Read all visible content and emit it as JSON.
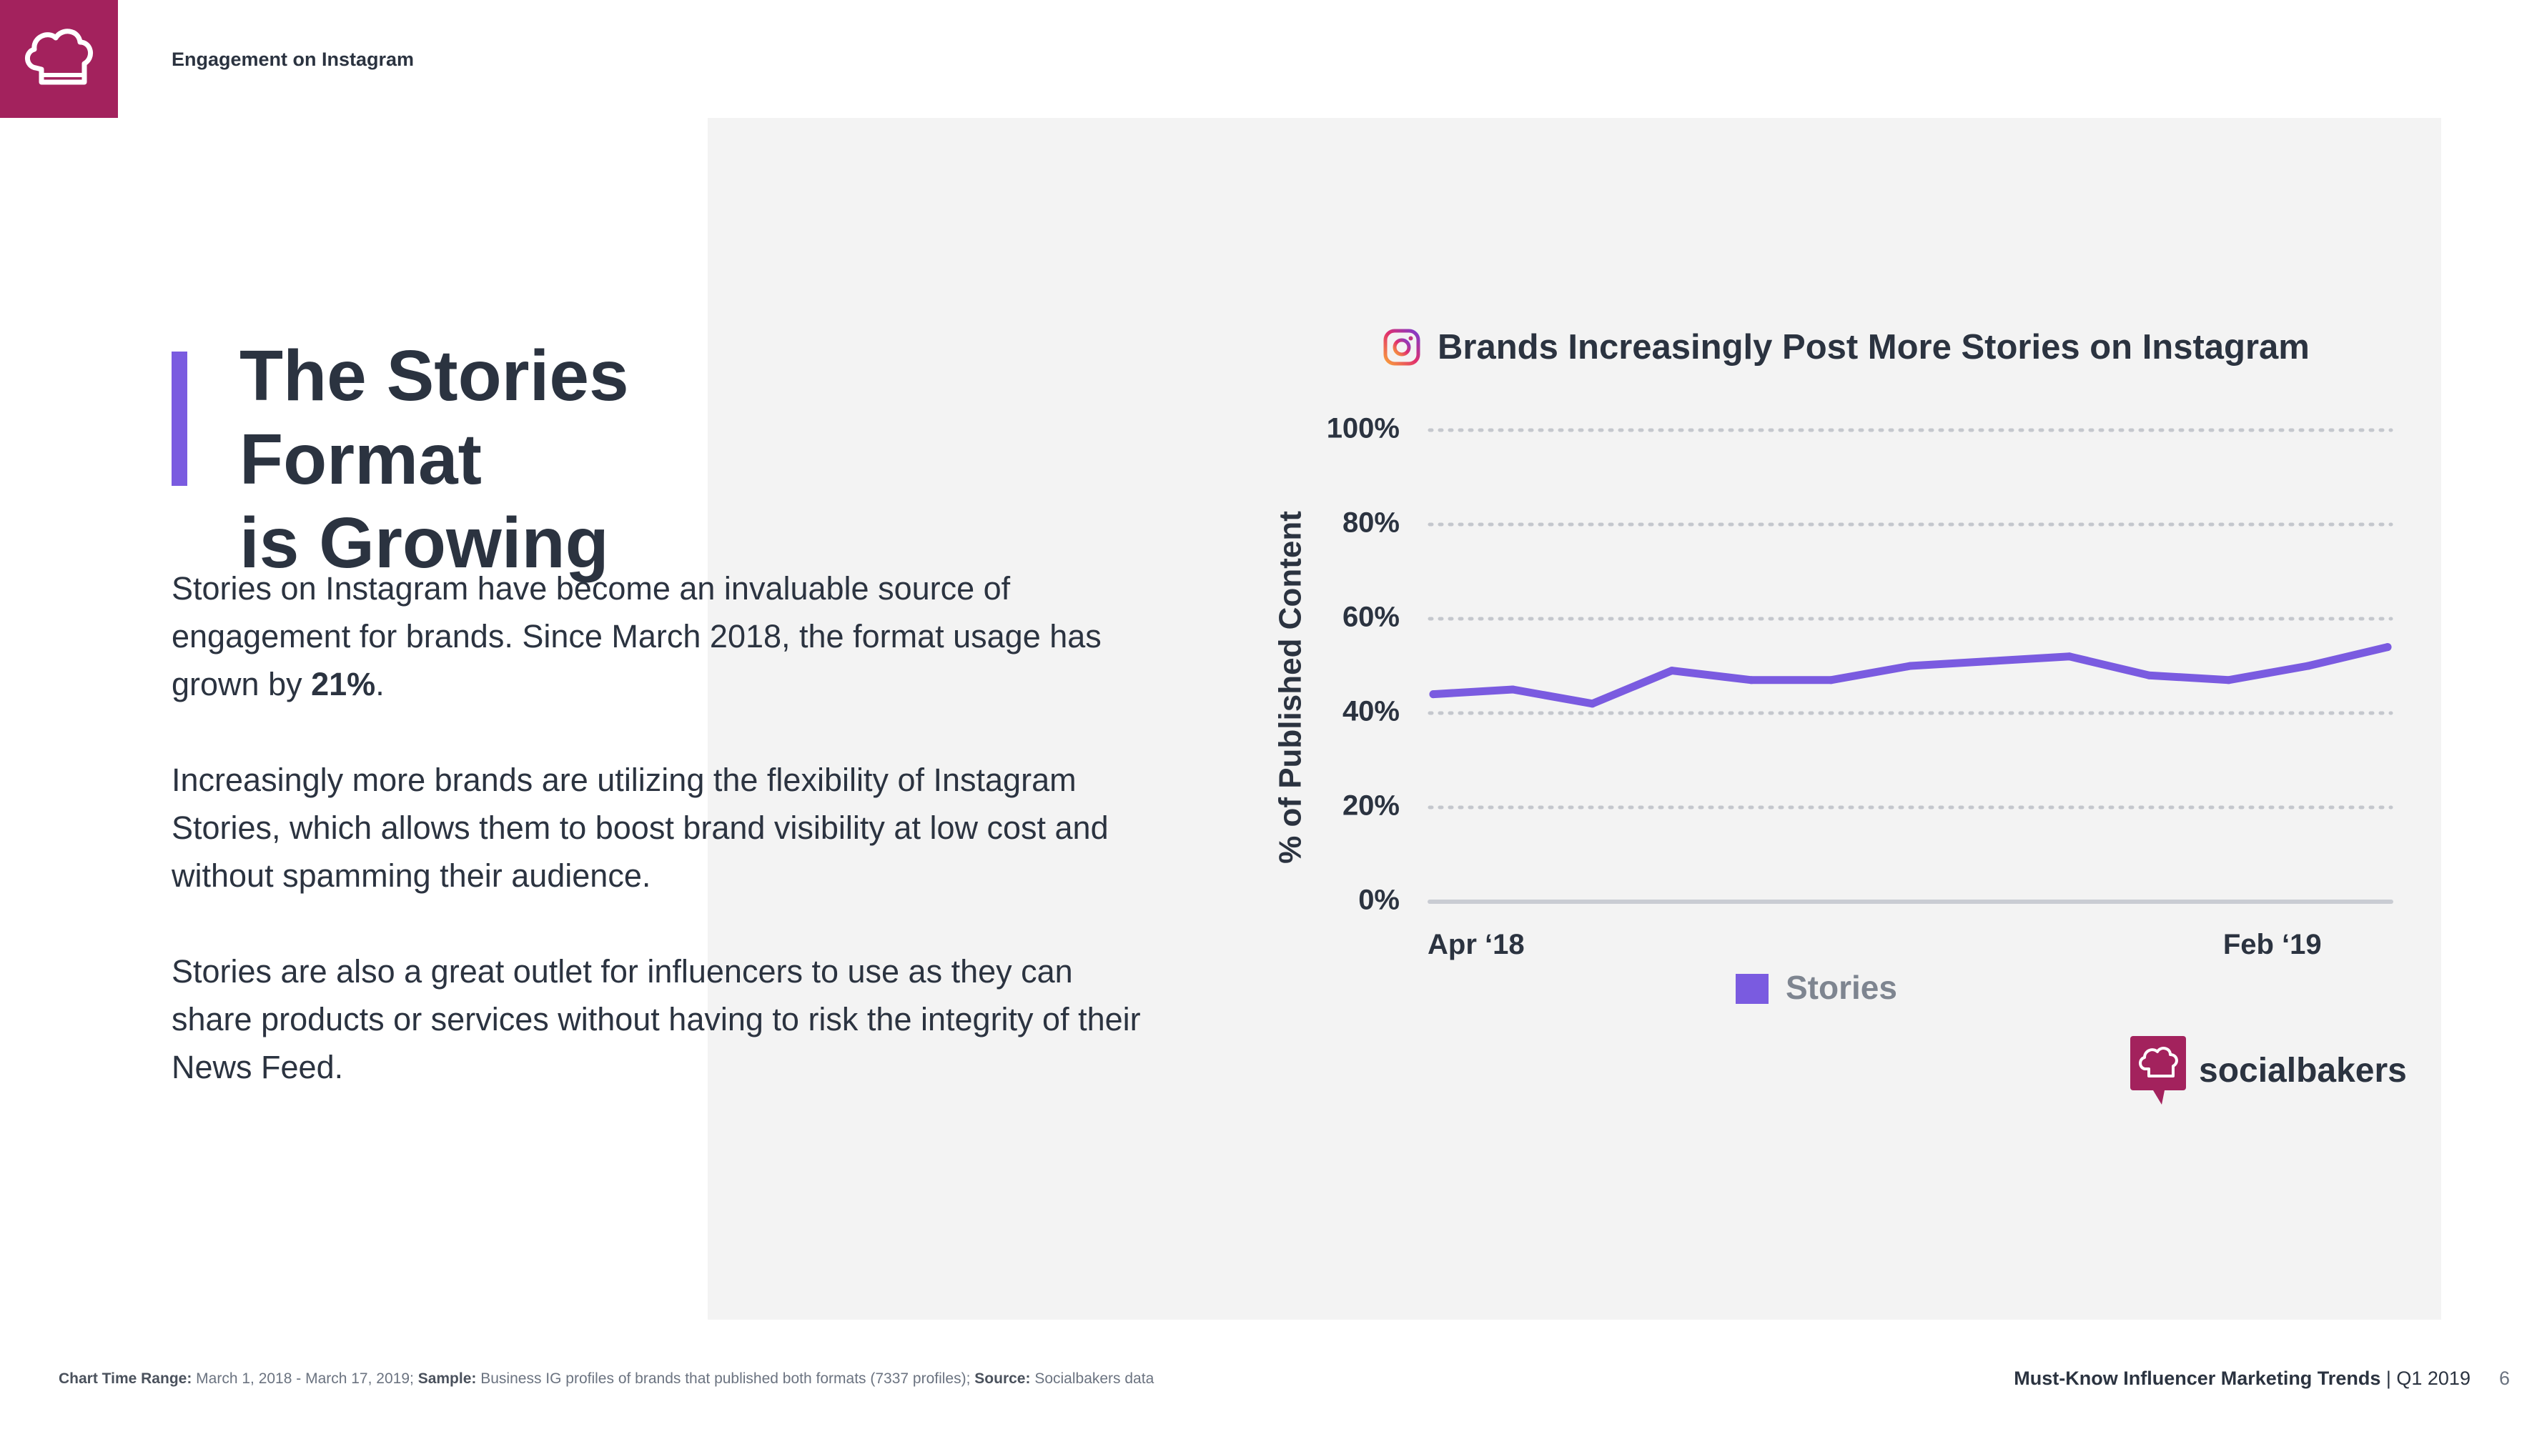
{
  "header": {
    "section": "Engagement on Instagram"
  },
  "headline": {
    "line1": "The Stories Format",
    "line2": "is Growing"
  },
  "body": {
    "p1_before": "Stories on Instagram have become an invaluable source of engagement for brands. Since March 2018, the format usage has grown by ",
    "p1_bold": "21%",
    "p1_after": ".",
    "p2": "Increasingly more brands are utilizing the flexibility of Instagram Stories, which allows them to boost brand visibility at low cost and without spamming their audience.",
    "p3": "Stories are also a great outlet for influencers to use as they can share products or services without having to risk the integrity of their News Feed."
  },
  "brand": {
    "name": "socialbakers"
  },
  "footer": {
    "range_label": "Chart Time Range:",
    "range_value": "March 1, 2018 - March 17, 2019;",
    "sample_label": "Sample:",
    "sample_value": "Business IG profiles of brands that published both formats (7337 profiles);",
    "source_label": "Source:",
    "source_value": "Socialbakers data",
    "report_title": "Must-Know Influencer Marketing Trends",
    "report_period": "| Q1 2019",
    "page_number": "6"
  },
  "colors": {
    "accent": "#7a5be0",
    "brand": "#a3225d",
    "text": "#2b3340",
    "panel": "#f3f3f3"
  },
  "chart_data": {
    "type": "line",
    "title": "Brands Increasingly Post More Stories on Instagram",
    "ylabel": "% of Published Content",
    "xlabel": "",
    "ylim": [
      0,
      100
    ],
    "yticks": [
      0,
      20,
      40,
      60,
      80,
      100
    ],
    "ytick_labels": [
      "0%",
      "20%",
      "40%",
      "60%",
      "80%",
      "100%"
    ],
    "x_labels": [
      "Apr ‘18",
      "Feb ‘19"
    ],
    "x_label_indices": [
      0,
      11
    ],
    "grid": true,
    "legend": "bottom-center",
    "series": [
      {
        "name": "Stories",
        "color": "#7a5be0",
        "values": [
          44,
          45,
          42,
          49,
          47,
          47,
          50,
          51,
          52,
          48,
          47,
          50,
          54
        ]
      }
    ]
  }
}
